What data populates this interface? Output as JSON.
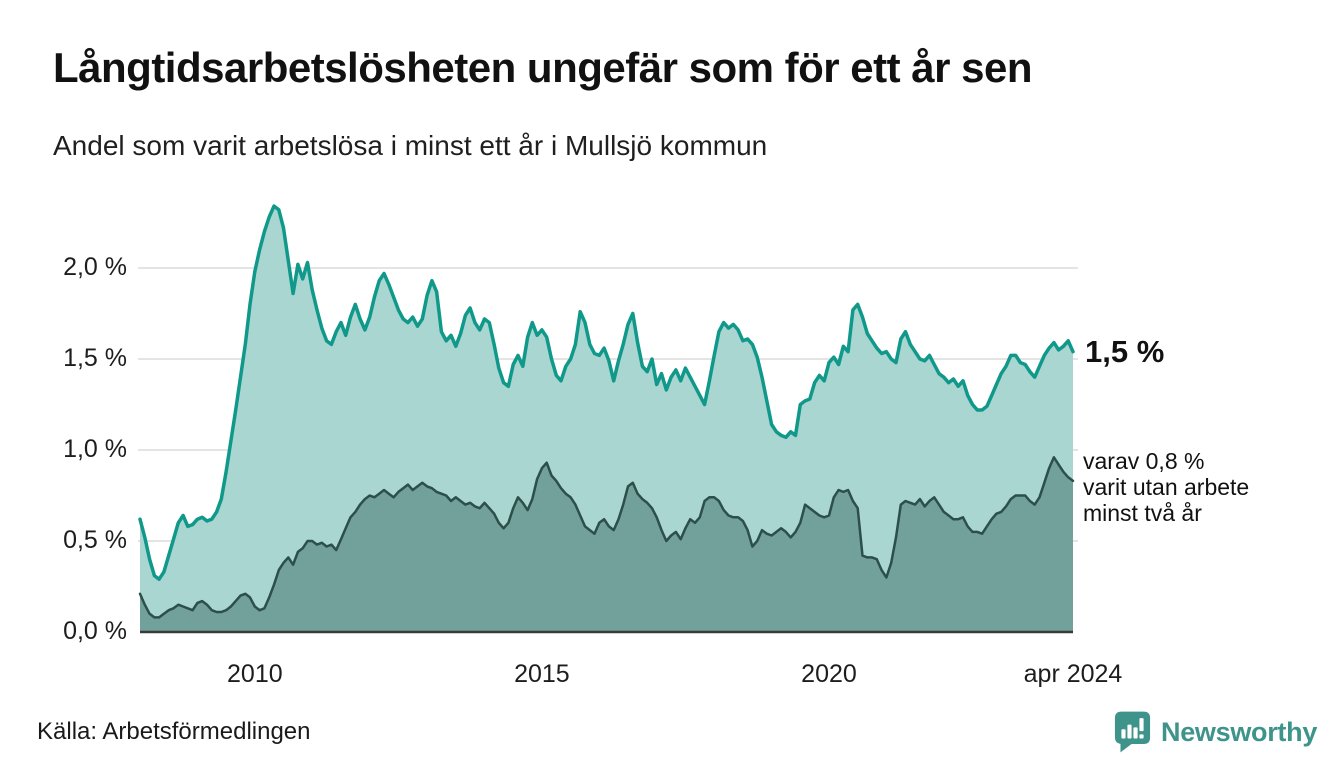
{
  "header": {
    "title": "Långtidsarbetslösheten ungefär som för ett år sen",
    "subtitle": "Andel som varit arbetslösa i minst ett år i Mullsjö kommun"
  },
  "annotations": {
    "series1_end_label": "1,5 %",
    "series2_end_lines": [
      "varav 0,8 %",
      "varit utan arbete",
      "minst två år"
    ]
  },
  "footer": {
    "source": "Källa: Arbetsförmedlingen",
    "brand": "Newsworthy"
  },
  "colors": {
    "series1_line": "#10998a",
    "series1_fill": "#a9d6d0",
    "series2_line": "#2d4f4b",
    "series2_fill": "#72a09a",
    "gridline": "#dcdcdc",
    "axis": "#3a3a3a",
    "brand_teal": "#3e948b"
  },
  "chart_data": {
    "type": "area",
    "title": "Långtidsarbetslösheten ungefär som för ett år sen",
    "subtitle": "Andel som varit arbetslösa i minst ett år i Mullsjö kommun",
    "x_unit": "month",
    "x_start": "2008-01",
    "x_end": "2024-04",
    "ylim": [
      0,
      2.45
    ],
    "grid": true,
    "grid_values": [
      0.5,
      1.0,
      1.5,
      2.0
    ],
    "yticks": [
      {
        "value": 0.0,
        "label": "0,0 %"
      },
      {
        "value": 0.5,
        "label": "0,5 %"
      },
      {
        "value": 1.0,
        "label": "1,0 %"
      },
      {
        "value": 1.5,
        "label": "1,5 %"
      },
      {
        "value": 2.0,
        "label": "2,0 %"
      }
    ],
    "xticks": [
      {
        "label": "2010",
        "month_index": 24
      },
      {
        "label": "2015",
        "month_index": 84
      },
      {
        "label": "2020",
        "month_index": 144
      },
      {
        "label": "apr 2024",
        "month_index": 195
      }
    ],
    "legend_position": "right-annotations",
    "series": [
      {
        "name": "Andel som varit arbetslösa i minst ett år",
        "end_label": "1,5 %",
        "end_value": 1.5,
        "values": [
          0.62,
          0.52,
          0.4,
          0.31,
          0.29,
          0.33,
          0.42,
          0.51,
          0.6,
          0.64,
          0.58,
          0.59,
          0.62,
          0.63,
          0.61,
          0.62,
          0.66,
          0.73,
          0.88,
          1.05,
          1.22,
          1.4,
          1.58,
          1.8,
          1.98,
          2.1,
          2.2,
          2.28,
          2.34,
          2.32,
          2.22,
          2.04,
          1.86,
          2.02,
          1.94,
          2.03,
          1.88,
          1.77,
          1.67,
          1.6,
          1.58,
          1.65,
          1.7,
          1.63,
          1.73,
          1.8,
          1.72,
          1.66,
          1.73,
          1.84,
          1.93,
          1.97,
          1.91,
          1.84,
          1.77,
          1.72,
          1.7,
          1.73,
          1.68,
          1.72,
          1.85,
          1.93,
          1.87,
          1.65,
          1.6,
          1.63,
          1.57,
          1.64,
          1.74,
          1.78,
          1.7,
          1.66,
          1.72,
          1.7,
          1.58,
          1.45,
          1.37,
          1.35,
          1.47,
          1.52,
          1.46,
          1.62,
          1.7,
          1.63,
          1.66,
          1.62,
          1.5,
          1.41,
          1.38,
          1.46,
          1.5,
          1.58,
          1.76,
          1.7,
          1.58,
          1.53,
          1.52,
          1.56,
          1.49,
          1.38,
          1.49,
          1.58,
          1.69,
          1.75,
          1.59,
          1.46,
          1.43,
          1.5,
          1.36,
          1.42,
          1.33,
          1.4,
          1.44,
          1.38,
          1.45,
          1.4,
          1.35,
          1.3,
          1.25,
          1.38,
          1.52,
          1.65,
          1.7,
          1.67,
          1.69,
          1.66,
          1.6,
          1.61,
          1.58,
          1.51,
          1.4,
          1.27,
          1.14,
          1.1,
          1.08,
          1.07,
          1.1,
          1.08,
          1.25,
          1.27,
          1.28,
          1.37,
          1.41,
          1.38,
          1.48,
          1.51,
          1.47,
          1.57,
          1.54,
          1.77,
          1.8,
          1.73,
          1.64,
          1.6,
          1.56,
          1.53,
          1.54,
          1.5,
          1.48,
          1.61,
          1.65,
          1.58,
          1.54,
          1.5,
          1.49,
          1.52,
          1.47,
          1.42,
          1.4,
          1.37,
          1.39,
          1.35,
          1.38,
          1.3,
          1.25,
          1.22,
          1.22,
          1.24,
          1.3,
          1.36,
          1.42,
          1.46,
          1.52,
          1.52,
          1.48,
          1.47,
          1.43,
          1.4,
          1.46,
          1.52,
          1.56,
          1.59,
          1.55,
          1.57,
          1.6,
          1.54
        ]
      },
      {
        "name": "varav utan arbete minst två år",
        "end_label": "varav 0,8 % varit utan arbete minst två år",
        "end_value": 0.8,
        "values": [
          0.21,
          0.15,
          0.1,
          0.08,
          0.08,
          0.1,
          0.12,
          0.13,
          0.15,
          0.14,
          0.13,
          0.12,
          0.16,
          0.17,
          0.15,
          0.12,
          0.11,
          0.11,
          0.12,
          0.14,
          0.17,
          0.2,
          0.21,
          0.19,
          0.14,
          0.12,
          0.13,
          0.19,
          0.26,
          0.34,
          0.38,
          0.41,
          0.37,
          0.44,
          0.46,
          0.5,
          0.5,
          0.48,
          0.49,
          0.47,
          0.48,
          0.45,
          0.51,
          0.57,
          0.63,
          0.66,
          0.7,
          0.73,
          0.75,
          0.74,
          0.76,
          0.78,
          0.76,
          0.74,
          0.77,
          0.79,
          0.81,
          0.78,
          0.8,
          0.82,
          0.8,
          0.79,
          0.77,
          0.76,
          0.75,
          0.72,
          0.74,
          0.72,
          0.7,
          0.71,
          0.69,
          0.68,
          0.71,
          0.68,
          0.65,
          0.6,
          0.57,
          0.6,
          0.68,
          0.74,
          0.71,
          0.67,
          0.73,
          0.84,
          0.9,
          0.93,
          0.86,
          0.83,
          0.79,
          0.76,
          0.74,
          0.7,
          0.64,
          0.58,
          0.56,
          0.54,
          0.6,
          0.62,
          0.58,
          0.56,
          0.62,
          0.7,
          0.8,
          0.82,
          0.76,
          0.73,
          0.71,
          0.68,
          0.63,
          0.56,
          0.5,
          0.53,
          0.55,
          0.51,
          0.57,
          0.62,
          0.6,
          0.63,
          0.72,
          0.74,
          0.74,
          0.72,
          0.67,
          0.64,
          0.63,
          0.63,
          0.61,
          0.56,
          0.47,
          0.5,
          0.56,
          0.54,
          0.53,
          0.55,
          0.57,
          0.55,
          0.52,
          0.55,
          0.6,
          0.7,
          0.68,
          0.66,
          0.64,
          0.63,
          0.64,
          0.74,
          0.78,
          0.77,
          0.78,
          0.72,
          0.68,
          0.42,
          0.41,
          0.41,
          0.4,
          0.34,
          0.3,
          0.38,
          0.52,
          0.7,
          0.72,
          0.71,
          0.7,
          0.73,
          0.69,
          0.72,
          0.74,
          0.7,
          0.66,
          0.64,
          0.62,
          0.62,
          0.63,
          0.58,
          0.55,
          0.55,
          0.54,
          0.58,
          0.62,
          0.65,
          0.66,
          0.69,
          0.73,
          0.75,
          0.75,
          0.75,
          0.72,
          0.7,
          0.74,
          0.82,
          0.9,
          0.96,
          0.92,
          0.88,
          0.85,
          0.83
        ]
      }
    ]
  }
}
